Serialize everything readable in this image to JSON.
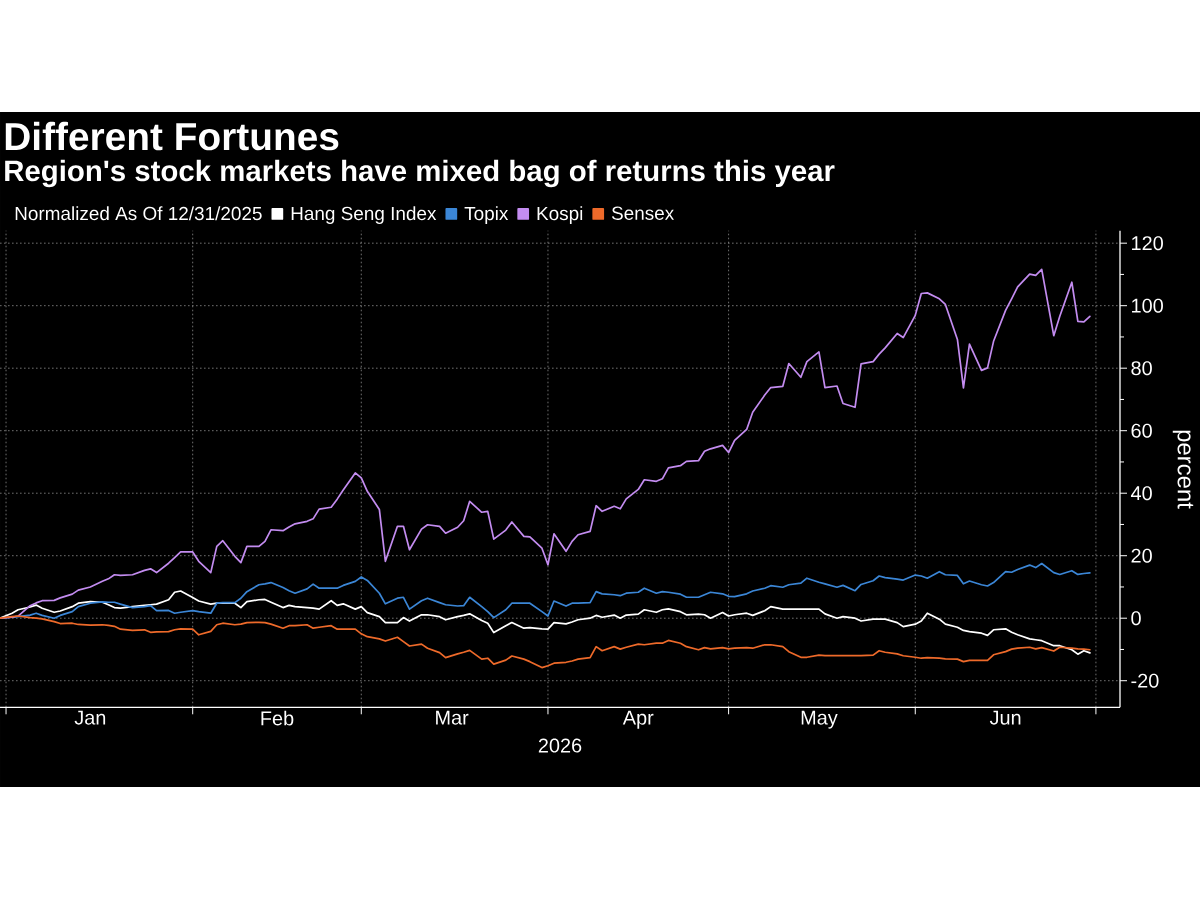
{
  "chart_data": {
    "type": "line",
    "title": "Different Fortunes",
    "subtitle": "Region's stock markets have mixed bag of returns this year",
    "legend_title": "Normalized As Of 12/31/2025",
    "xlabel": "2026",
    "ylabel": "percent",
    "x": [
      "2025-12-31",
      "2026-01-02",
      "2026-01-03",
      "2026-01-05",
      "2026-01-06",
      "2026-01-07",
      "2026-01-09",
      "2026-01-10",
      "2026-01-12",
      "2026-01-13",
      "2026-01-15",
      "2026-01-17",
      "2026-01-18",
      "2026-01-19",
      "2026-01-20",
      "2026-01-22",
      "2026-01-24",
      "2026-01-25",
      "2026-01-26",
      "2026-01-28",
      "2026-01-29",
      "2026-01-30",
      "2026-02-01",
      "2026-02-02",
      "2026-02-04",
      "2026-02-05",
      "2026-02-06",
      "2026-02-08",
      "2026-02-09",
      "2026-02-10",
      "2026-02-12",
      "2026-02-13",
      "2026-02-14",
      "2026-02-16",
      "2026-02-17",
      "2026-02-18",
      "2026-02-20",
      "2026-02-21",
      "2026-02-22",
      "2026-02-24",
      "2026-02-25",
      "2026-02-26",
      "2026-02-28",
      "2026-03-01",
      "2026-03-02",
      "2026-03-04",
      "2026-03-05",
      "2026-03-07",
      "2026-03-08",
      "2026-03-09",
      "2026-03-11",
      "2026-03-12",
      "2026-03-14",
      "2026-03-15",
      "2026-03-17",
      "2026-03-18",
      "2026-03-19",
      "2026-03-21",
      "2026-03-22",
      "2026-03-23",
      "2026-03-25",
      "2026-03-26",
      "2026-03-28",
      "2026-03-29",
      "2026-03-31",
      "2026-04-01",
      "2026-04-02",
      "2026-04-04",
      "2026-04-05",
      "2026-04-06",
      "2026-04-08",
      "2026-04-09",
      "2026-04-10",
      "2026-04-12",
      "2026-04-13",
      "2026-04-14",
      "2026-04-16",
      "2026-04-17",
      "2026-04-19",
      "2026-04-20",
      "2026-04-21",
      "2026-04-23",
      "2026-04-24",
      "2026-04-26",
      "2026-04-27",
      "2026-04-28",
      "2026-04-30",
      "2026-05-01",
      "2026-05-02",
      "2026-05-04",
      "2026-05-05",
      "2026-05-07",
      "2026-05-08",
      "2026-05-10",
      "2026-05-11",
      "2026-05-13",
      "2026-05-14",
      "2026-05-16",
      "2026-05-17",
      "2026-05-19",
      "2026-05-20",
      "2026-05-22",
      "2026-05-23",
      "2026-05-25",
      "2026-05-26",
      "2026-05-27",
      "2026-05-29",
      "2026-05-30",
      "2026-06-01",
      "2026-06-02",
      "2026-06-03",
      "2026-06-05",
      "2026-06-06",
      "2026-06-08",
      "2026-06-09",
      "2026-06-10",
      "2026-06-12",
      "2026-06-13",
      "2026-06-14",
      "2026-06-16",
      "2026-06-17",
      "2026-06-18",
      "2026-06-20",
      "2026-06-21",
      "2026-06-22",
      "2026-06-24",
      "2026-06-25",
      "2026-06-27",
      "2026-06-28",
      "2026-06-29",
      "2026-06-30"
    ],
    "series": [
      {
        "name": "Hang Seng Index",
        "color": "#ffffff",
        "values": [
          0,
          1.6,
          2.7,
          3.6,
          4.2,
          3.2,
          1.9,
          2.3,
          3.7,
          4.8,
          5.3,
          5.1,
          4.3,
          3.4,
          3.2,
          3.7,
          4.1,
          4.3,
          4.5,
          5.9,
          8.3,
          8.7,
          6.6,
          5.5,
          4.5,
          4.8,
          4.8,
          4.8,
          3.4,
          5.3,
          5.9,
          6.0,
          5.1,
          3.4,
          4.1,
          3.7,
          3.4,
          3.2,
          2.9,
          5.6,
          4.1,
          4.6,
          2.9,
          3.7,
          1.8,
          0.5,
          -1.4,
          -1.4,
          0.2,
          -0.9,
          1.1,
          1.1,
          0.5,
          -0.5,
          0.5,
          0.9,
          1.4,
          -0.7,
          -1.6,
          -4.6,
          -2.4,
          -1.4,
          -3.2,
          -3.0,
          -3.4,
          -3.5,
          -1.4,
          -1.8,
          -1.2,
          -0.5,
          0,
          0.9,
          0.3,
          1.0,
          0,
          1.0,
          1.3,
          2.7,
          1.9,
          2.7,
          3.0,
          2.1,
          1.1,
          1.3,
          1.1,
          0,
          1.8,
          0.7,
          1.1,
          1.6,
          0.9,
          2.4,
          3.7,
          2.9,
          2.9,
          2.9,
          2.9,
          2.9,
          1.4,
          0,
          0.5,
          0,
          -0.9,
          -0.3,
          -0.3,
          -0.3,
          -1.4,
          -2.7,
          -1.9,
          -0.9,
          1.6,
          -0.3,
          -1.9,
          -2.9,
          -3.9,
          -4.3,
          -4.8,
          -5.5,
          -3.7,
          -3.4,
          -4.5,
          -5.3,
          -6.6,
          -6.9,
          -7.2,
          -8.8,
          -8.8,
          -10.1,
          -11.5,
          -10.4,
          -11.1
        ]
      },
      {
        "name": "Topix",
        "color": "#3b86d6",
        "values": [
          0,
          0.3,
          0.5,
          1.0,
          1.6,
          0.9,
          0,
          0.9,
          2.1,
          3.7,
          4.8,
          5.2,
          5.1,
          5.1,
          4.5,
          3.4,
          3.7,
          4.0,
          2.4,
          2.5,
          1.6,
          1.9,
          2.4,
          2.1,
          1.6,
          4.8,
          5.0,
          5.0,
          6.4,
          8.5,
          10.7,
          11.0,
          11.4,
          9.8,
          8.8,
          8.0,
          9.4,
          10.9,
          9.6,
          9.6,
          9.6,
          10.5,
          11.8,
          13.2,
          12.1,
          8.0,
          4.6,
          6.4,
          6.7,
          2.9,
          5.6,
          6.4,
          5.0,
          4.3,
          3.9,
          4.0,
          6.7,
          3.7,
          2.1,
          0.2,
          2.7,
          4.8,
          4.8,
          4.8,
          2.1,
          0.7,
          5.5,
          3.9,
          4.8,
          4.8,
          5.0,
          8.5,
          7.8,
          7.5,
          7.2,
          8.0,
          8.3,
          9.6,
          8.0,
          8.5,
          8.3,
          7.7,
          6.7,
          6.7,
          7.5,
          8.3,
          7.8,
          7.0,
          6.9,
          7.8,
          8.7,
          9.6,
          10.4,
          9.9,
          10.7,
          11.2,
          12.8,
          11.5,
          11.0,
          9.9,
          10.5,
          8.8,
          10.8,
          12.0,
          13.5,
          13.0,
          12.5,
          12.2,
          13.8,
          13.5,
          12.8,
          14.9,
          13.9,
          13.7,
          11.0,
          11.9,
          10.7,
          10.3,
          11.4,
          14.9,
          14.7,
          15.6,
          17.0,
          16.2,
          17.5,
          14.6,
          14.0,
          15.2,
          14.0,
          14.3,
          14.5
        ]
      },
      {
        "name": "Kospi",
        "color": "#c38cf0",
        "values": [
          0,
          0.3,
          0.7,
          4.0,
          4.9,
          5.6,
          5.7,
          6.5,
          7.7,
          9.0,
          10.0,
          11.8,
          12.6,
          13.9,
          13.7,
          13.9,
          15.3,
          15.8,
          14.6,
          17.6,
          19.4,
          21.2,
          21.2,
          18.2,
          14.6,
          23.0,
          24.8,
          19.8,
          17.8,
          23.0,
          23.0,
          24.6,
          28.3,
          28.0,
          29.2,
          30.2,
          31.0,
          31.8,
          34.9,
          35.5,
          38.1,
          41.0,
          46.5,
          44.9,
          40.6,
          34.8,
          18.2,
          29.4,
          29.4,
          21.9,
          28.5,
          29.9,
          29.4,
          27.2,
          29.1,
          31.2,
          37.4,
          33.9,
          34.2,
          25.3,
          28.2,
          30.8,
          26.2,
          26.0,
          22.4,
          17.1,
          27.0,
          21.4,
          24.6,
          26.7,
          27.8,
          36.0,
          34.2,
          35.8,
          35.0,
          38.2,
          41.2,
          44.3,
          43.8,
          44.6,
          48.1,
          48.8,
          50.2,
          50.4,
          53.4,
          54.2,
          55.3,
          53.0,
          56.9,
          60.4,
          65.9,
          71.4,
          73.8,
          74.2,
          81.5,
          77.1,
          82.1,
          85.2,
          73.8,
          74.3,
          68.7,
          67.5,
          81.4,
          82.1,
          84.5,
          86.5,
          91.1,
          89.8,
          96.9,
          103.9,
          104.1,
          102.2,
          100.4,
          89.2,
          73.7,
          87.7,
          79.3,
          80.1,
          88.6,
          98.5,
          102.2,
          106.0,
          110.1,
          109.7,
          111.6,
          90.4,
          96.6,
          107.5,
          95.0,
          94.8,
          96.6
        ]
      },
      {
        "name": "Sensex",
        "color": "#ee6a2a",
        "values": [
          0,
          0.5,
          0.7,
          0.2,
          0,
          -0.2,
          -1.1,
          -1.7,
          -1.6,
          -2.0,
          -2.2,
          -2.1,
          -2.3,
          -2.6,
          -3.5,
          -3.9,
          -3.7,
          -4.5,
          -4.4,
          -4.3,
          -3.7,
          -3.4,
          -3.5,
          -5.3,
          -4.2,
          -2.1,
          -1.6,
          -2.1,
          -1.9,
          -1.4,
          -1.3,
          -1.4,
          -1.9,
          -3.2,
          -2.4,
          -2.4,
          -2.1,
          -3.2,
          -2.9,
          -2.4,
          -3.5,
          -3.5,
          -3.5,
          -5.0,
          -5.9,
          -6.6,
          -7.3,
          -6.1,
          -7.5,
          -8.9,
          -8.3,
          -9.6,
          -11.0,
          -12.6,
          -11.4,
          -10.9,
          -10.3,
          -13.1,
          -12.8,
          -14.7,
          -13.4,
          -12.1,
          -13.1,
          -13.9,
          -15.8,
          -15.2,
          -14.4,
          -14.1,
          -13.7,
          -13.1,
          -12.6,
          -9.1,
          -10.4,
          -9.1,
          -9.9,
          -9.3,
          -8.3,
          -8.5,
          -8.0,
          -8.0,
          -7.1,
          -8.0,
          -9.1,
          -10.1,
          -9.4,
          -9.8,
          -9.4,
          -9.8,
          -9.6,
          -9.4,
          -9.6,
          -8.5,
          -8.5,
          -9.1,
          -10.7,
          -12.5,
          -12.5,
          -11.8,
          -12.0,
          -12.0,
          -12.0,
          -12.0,
          -12.0,
          -11.8,
          -10.4,
          -10.9,
          -11.4,
          -12.0,
          -12.5,
          -12.8,
          -12.6,
          -12.8,
          -13.0,
          -13.1,
          -13.9,
          -13.5,
          -13.5,
          -13.5,
          -11.7,
          -10.7,
          -9.9,
          -9.6,
          -9.3,
          -9.8,
          -9.4,
          -10.5,
          -9.3,
          -9.6,
          -9.8,
          -9.9,
          -10.1
        ]
      }
    ],
    "xlim": [
      "2025-12-31",
      "2026-07-05"
    ],
    "xticks": [
      {
        "value": "2026-01-01",
        "label": null
      },
      {
        "value": "2026-02-01",
        "label": null
      },
      {
        "value": "2026-03-01",
        "label": null
      },
      {
        "value": "2026-04-01",
        "label": null
      },
      {
        "value": "2026-05-01",
        "label": null
      },
      {
        "value": "2026-06-01",
        "label": null
      },
      {
        "value": "2026-07-01",
        "label": null
      },
      {
        "value": "2026-01-15",
        "label": "Jan"
      },
      {
        "value": "2026-02-15",
        "label": "Feb"
      },
      {
        "value": "2026-03-16",
        "label": "Mar"
      },
      {
        "value": "2026-04-16",
        "label": "Apr"
      },
      {
        "value": "2026-05-16",
        "label": "May"
      },
      {
        "value": "2026-06-16",
        "label": "Jun"
      }
    ],
    "ylim": [
      -28.5,
      124
    ],
    "yticks": [
      -20,
      0,
      20,
      40,
      60,
      80,
      100,
      120,
      {
        "value": -10,
        "label": null
      },
      {
        "value": 10,
        "label": null
      },
      {
        "value": 30,
        "label": null
      },
      {
        "value": 50,
        "label": null
      },
      {
        "value": 70,
        "label": null
      },
      {
        "value": 90,
        "label": null
      },
      {
        "value": 110,
        "label": null
      }
    ],
    "grid": true,
    "legend": "top left"
  }
}
